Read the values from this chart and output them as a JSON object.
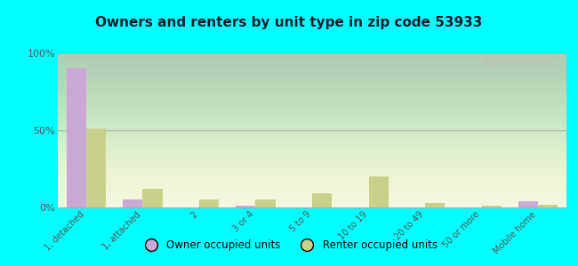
{
  "title": "Owners and renters by unit type in zip code 53933",
  "categories": [
    "1, detached",
    "1, attached",
    "2",
    "3 or 4",
    "5 to 9",
    "10 to 19",
    "20 to 49",
    "50 or more",
    "Mobile home"
  ],
  "owner_values": [
    90,
    5,
    0,
    1,
    0,
    0,
    0,
    0,
    4
  ],
  "renter_values": [
    51,
    12,
    5,
    5,
    9,
    20,
    3,
    1,
    2
  ],
  "owner_color": "#c9a8d4",
  "renter_color": "#c8d08a",
  "bg_color": "#00ffff",
  "ylim": [
    0,
    100
  ],
  "yticks": [
    0,
    50,
    100
  ],
  "ytick_labels": [
    "0%",
    "50%",
    "100%"
  ],
  "bar_width": 0.35,
  "legend_owner": "Owner occupied units",
  "legend_renter": "Renter occupied units",
  "watermark": "City-Data.com",
  "title_color": "#1a1a2e",
  "tick_color": "#555555"
}
